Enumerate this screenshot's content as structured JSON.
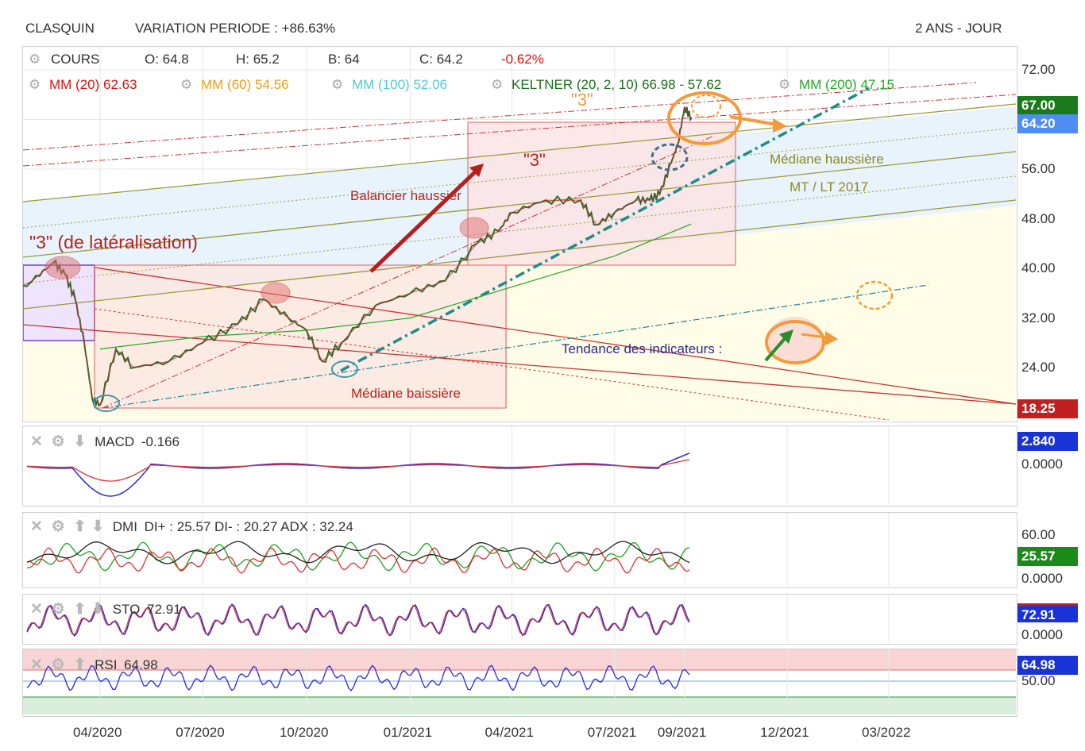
{
  "header": {
    "ticker": "CLASQUIN",
    "variation": "VARIATION PERIODE : +86.63%",
    "period": "2 ANS - JOUR"
  },
  "quote": {
    "label": "COURS",
    "open": "O: 64.8",
    "high": "H: 65.2",
    "low": "B: 64",
    "close": "C: 64.2",
    "change": "-0.62%"
  },
  "indicators": {
    "mm20": "MM (20) 62.63",
    "mm60": "MM (60) 54.56",
    "mm100": "MM (100) 52.06",
    "keltner": "KELTNER (20, 2, 10) 66.98 - 57.62",
    "mm200": "MM (200) 47.15"
  },
  "annotations": {
    "three_top": "\"3\"",
    "three_mid": "\"3\"",
    "lateral": "\"3\" (de latéralisation)",
    "balancier": "Balancier haussier",
    "mediane_haussiere": "Médiane haussière",
    "mt_lt": "MT / LT 2017",
    "tendance": "Tendance des indicateurs :",
    "mediane_baissiere": "Médiane baissière"
  },
  "subcharts": {
    "macd": {
      "label": "MACD",
      "value": "-0.166",
      "tag": "2.840",
      "zero": "0.0000"
    },
    "dmi": {
      "label": "DMI",
      "value": "DI+ : 25.57 DI- : 20.27 ADX : 32.24",
      "tag": "25.57",
      "top": "60.00",
      "zero": "0.0000"
    },
    "sto": {
      "label": "STO",
      "value": "72.91",
      "tag": "72.91",
      "zero": "0.0000"
    },
    "rsi": {
      "label": "RSI",
      "value": "64.98",
      "tag": "64.98",
      "mid": "50.00"
    }
  },
  "price_tags": {
    "upper": "67.00",
    "last": "64.20",
    "low": "18.25"
  },
  "colors": {
    "up": "#2e7d32",
    "down": "#c62828",
    "mm20": "#e53935",
    "mm60": "#f39c12",
    "mm100": "#4ecbd1",
    "keltner": "#1b7a1b",
    "mm200": "#22aa22",
    "tag_blue": "#1a33d6"
  },
  "chart_data": {
    "type": "line",
    "title": "CLASQUIN",
    "x_ticks": [
      "04/2020",
      "07/2020",
      "10/2020",
      "01/2021",
      "04/2021",
      "07/2021",
      "09/2021",
      "12/2021",
      "03/2022"
    ],
    "y_ticks": [
      "72.00",
      "64.00",
      "56.00",
      "48.00",
      "40.00",
      "32.00",
      "24.00"
    ],
    "ylim": [
      14,
      74
    ],
    "series": [
      {
        "name": "COURS",
        "x": [
          "2020-01-01",
          "2020-02-01",
          "2020-02-20",
          "2020-03-01",
          "2020-03-10",
          "2020-03-18",
          "2020-03-25",
          "2020-04-01",
          "2020-04-15",
          "2020-05-01",
          "2020-06-01",
          "2020-07-01",
          "2020-08-01",
          "2020-08-24",
          "2020-09-15",
          "2020-10-01",
          "2020-10-15",
          "2020-11-01",
          "2020-12-01",
          "2021-01-01",
          "2021-02-01",
          "2021-03-01",
          "2021-03-20",
          "2021-04-01",
          "2021-05-01",
          "2021-06-01",
          "2021-06-15",
          "2021-07-01",
          "2021-07-20",
          "2021-08-01",
          "2021-08-10",
          "2021-08-20",
          "2021-08-26",
          "2021-09-01",
          "2021-09-07"
        ],
        "values": [
          35,
          38,
          41,
          39,
          35,
          28,
          19,
          18,
          27,
          24,
          25,
          28,
          31,
          35,
          32,
          30,
          25,
          28,
          34,
          36,
          38,
          44,
          46,
          49,
          51,
          51,
          47,
          49,
          51,
          51,
          52,
          57,
          60,
          66,
          64.2
        ]
      },
      {
        "name": "MM (200)",
        "x": [
          "2020-04-01",
          "2020-07-01",
          "2020-10-01",
          "2021-01-01",
          "2021-04-01",
          "2021-07-01",
          "2021-09-07"
        ],
        "values": [
          27,
          29,
          30,
          32,
          37,
          42,
          47.15
        ]
      }
    ],
    "subplots": [
      {
        "name": "MACD",
        "last": -0.166
      },
      {
        "name": "DMI",
        "di_plus": 25.57,
        "di_minus": 20.27,
        "adx": 32.24
      },
      {
        "name": "STO",
        "last": 72.91
      },
      {
        "name": "RSI",
        "last": 64.98
      }
    ]
  }
}
